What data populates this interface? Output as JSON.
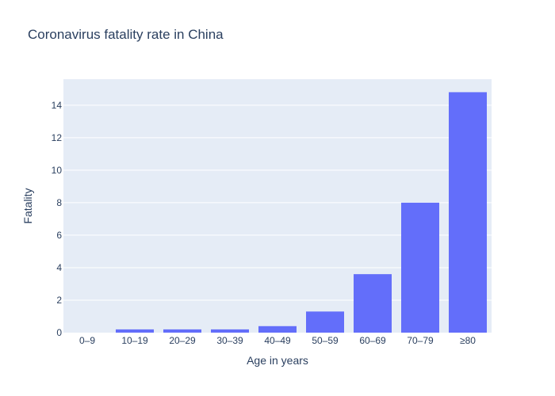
{
  "chart_data": {
    "type": "bar",
    "title": "Coronavirus fatality rate in China",
    "xlabel": "Age in years",
    "ylabel": "Fatality",
    "categories": [
      "0–9",
      "10–19",
      "20–29",
      "30–39",
      "40–49",
      "50–59",
      "60–69",
      "70–79",
      "≥80"
    ],
    "values": [
      0,
      0.2,
      0.2,
      0.2,
      0.4,
      1.3,
      3.6,
      8.0,
      14.8
    ],
    "ylim": [
      0,
      15.6
    ],
    "yticks": [
      0,
      2,
      4,
      6,
      8,
      10,
      12,
      14
    ],
    "grid": true,
    "legend": "none",
    "colors": {
      "bar": "#636efa",
      "plot_background": "#e5ecf6",
      "gridline": "#ffffff",
      "text": "#2a3f5f"
    }
  }
}
